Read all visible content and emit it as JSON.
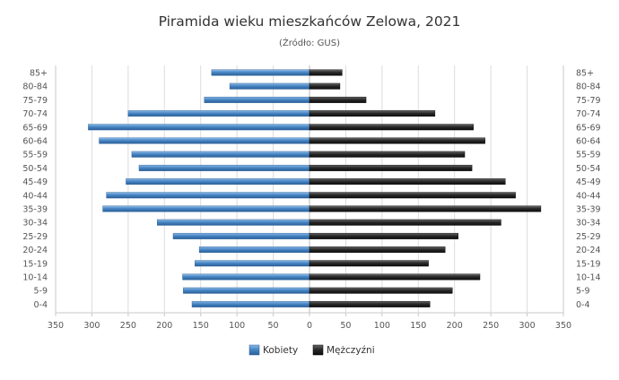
{
  "chart_data": {
    "type": "bar",
    "orientation": "horizontal-pyramid",
    "title": "Piramida wieku mieszkańców Zelowa, 2021",
    "subtitle": "(Źródło: GUS)",
    "categories": [
      "85+",
      "80-84",
      "75-79",
      "70-74",
      "65-69",
      "60-64",
      "55-59",
      "50-54",
      "45-49",
      "40-44",
      "35-39",
      "30-34",
      "25-29",
      "20-24",
      "15-19",
      "10-14",
      "5-9",
      "0-4"
    ],
    "series": [
      {
        "name": "Kobiety",
        "color": "#4a86c4",
        "values": [
          135,
          110,
          145,
          250,
          305,
          290,
          245,
          235,
          253,
          280,
          285,
          210,
          188,
          152,
          158,
          175,
          174,
          162
        ]
      },
      {
        "name": "Mężczyźni",
        "color": "#2a2a2a",
        "values": [
          45,
          42,
          78,
          173,
          226,
          242,
          214,
          224,
          270,
          284,
          319,
          264,
          205,
          187,
          164,
          235,
          197,
          166
        ]
      }
    ],
    "xticks": [
      "350",
      "300",
      "250",
      "200",
      "150",
      "100",
      "50",
      "0",
      "50",
      "100",
      "150",
      "200",
      "250",
      "300",
      "350"
    ],
    "xlim": [
      -350,
      350
    ],
    "grid": true,
    "legend": "bottom-center"
  }
}
